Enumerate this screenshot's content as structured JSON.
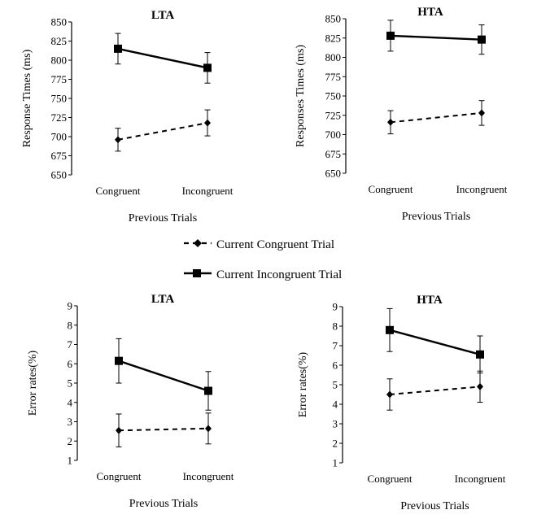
{
  "chart_data": [
    {
      "type": "line",
      "title": "LTA",
      "xlabel": "Previous Trials",
      "ylabel": "Response Times (ms)",
      "categories": [
        "Congruent",
        "Incongruent"
      ],
      "ylim": [
        650,
        850
      ],
      "yticks": [
        650,
        675,
        700,
        725,
        750,
        775,
        800,
        825,
        850
      ],
      "series": [
        {
          "name": "Current Congruent Trial",
          "values": [
            696,
            718
          ],
          "errors": [
            15,
            17
          ],
          "marker": "diamond",
          "line": "dashed"
        },
        {
          "name": "Current Incongruent Trial",
          "values": [
            815,
            790
          ],
          "errors": [
            20,
            20
          ],
          "marker": "square",
          "line": "solid"
        }
      ]
    },
    {
      "type": "line",
      "title": "HTA",
      "xlabel": "Previous Trials",
      "ylabel": "Responses Times (ms)",
      "categories": [
        "Congruent",
        "Incongruent"
      ],
      "ylim": [
        650,
        850
      ],
      "yticks": [
        650,
        675,
        700,
        725,
        750,
        775,
        800,
        825,
        850
      ],
      "series": [
        {
          "name": "Current Congruent Trial",
          "values": [
            716,
            728
          ],
          "errors": [
            15,
            16
          ],
          "marker": "diamond",
          "line": "dashed"
        },
        {
          "name": "Current Incongruent Trial",
          "values": [
            828,
            823
          ],
          "errors": [
            20,
            19
          ],
          "marker": "square",
          "line": "solid"
        }
      ]
    },
    {
      "type": "line",
      "title": "LTA",
      "xlabel": "Previous Trials",
      "ylabel": "Error rates(%)",
      "categories": [
        "Congruent",
        "Incongruent"
      ],
      "ylim": [
        1,
        9
      ],
      "yticks": [
        1,
        2,
        3,
        4,
        5,
        6,
        7,
        8,
        9
      ],
      "series": [
        {
          "name": "Current Congruent Trial",
          "values": [
            2.55,
            2.65
          ],
          "errors": [
            0.85,
            0.8
          ],
          "marker": "diamond",
          "line": "dashed"
        },
        {
          "name": "Current Incongruent Trial",
          "values": [
            6.15,
            4.6
          ],
          "errors": [
            1.15,
            1.0
          ],
          "marker": "square",
          "line": "solid"
        }
      ]
    },
    {
      "type": "line",
      "title": "HTA",
      "xlabel": "Previous Trials",
      "ylabel": "Error rates(%)",
      "categories": [
        "Congruent",
        "Incongruent"
      ],
      "ylim": [
        1,
        9
      ],
      "yticks": [
        1,
        2,
        3,
        4,
        5,
        6,
        7,
        8,
        9
      ],
      "series": [
        {
          "name": "Current Congruent Trial",
          "values": [
            4.5,
            4.9
          ],
          "errors": [
            0.8,
            0.8
          ],
          "marker": "diamond",
          "line": "dashed"
        },
        {
          "name": "Current Incongruent Trial",
          "values": [
            7.8,
            6.55
          ],
          "errors": [
            1.1,
            0.95
          ],
          "marker": "square",
          "line": "solid"
        }
      ]
    }
  ],
  "legend": {
    "items": [
      {
        "label": "Current Congruent Trial",
        "marker": "diamond",
        "line": "dashed"
      },
      {
        "label": "Current Incongruent Trial",
        "marker": "square",
        "line": "solid"
      }
    ]
  }
}
